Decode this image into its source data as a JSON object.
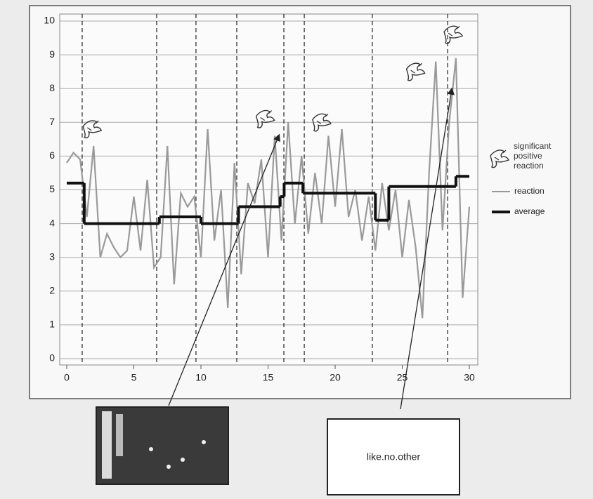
{
  "chart_data": {
    "type": "line",
    "x": [
      0,
      0.5,
      1,
      1.5,
      2,
      2.5,
      3,
      3.5,
      4,
      4.5,
      5,
      5.5,
      6,
      6.5,
      7,
      7.5,
      8,
      8.5,
      9,
      9.5,
      10,
      10.5,
      11,
      11.5,
      12,
      12.5,
      13,
      13.5,
      14,
      14.5,
      15,
      15.5,
      16,
      16.5,
      17,
      17.5,
      18,
      18.5,
      19,
      19.5,
      20,
      20.5,
      21,
      21.5,
      22,
      22.5,
      23,
      23.5,
      24,
      24.5,
      25,
      25.5,
      26,
      26.5,
      27,
      27.5,
      28,
      28.5,
      29,
      29.5,
      30
    ],
    "series": [
      {
        "name": "reaction",
        "color": "#9a9a9a",
        "values": [
          5.8,
          6.1,
          5.9,
          4.2,
          6.3,
          3.0,
          3.7,
          3.3,
          3.0,
          3.2,
          4.8,
          3.2,
          5.3,
          2.7,
          3.0,
          6.3,
          2.2,
          4.9,
          4.5,
          4.8,
          3.0,
          6.8,
          3.5,
          5.0,
          1.5,
          5.8,
          2.5,
          5.2,
          4.6,
          5.9,
          3.0,
          6.6,
          3.5,
          7.0,
          4.0,
          6.0,
          3.7,
          5.5,
          4.0,
          6.6,
          4.5,
          6.8,
          4.2,
          5.0,
          3.5,
          4.8,
          3.2,
          5.2,
          3.8,
          5.0,
          3.0,
          4.7,
          3.3,
          1.2,
          5.5,
          8.8,
          3.8,
          7.0,
          8.9,
          1.8,
          4.5
        ]
      },
      {
        "name": "average",
        "color": "#111111",
        "step": true,
        "x": [
          0,
          1.3,
          6.9,
          10,
          12.8,
          15.9,
          16.2,
          17.6,
          23,
          24,
          29,
          30
        ],
        "values": [
          5.2,
          4.0,
          4.2,
          4.0,
          4.5,
          4.8,
          5.2,
          4.9,
          4.1,
          5.1,
          5.4,
          5.4
        ]
      }
    ],
    "significant_reactions": {
      "name": "significant positive reaction",
      "x": [
        1.9,
        14.8,
        19,
        26,
        28.8
      ],
      "y": [
        6.8,
        7.1,
        7.0,
        8.5,
        9.6
      ]
    },
    "markers_x": [
      1.15,
      6.7,
      9.63,
      12.67,
      16.18,
      17.7,
      22.77,
      28.38
    ],
    "xlim": [
      0,
      30
    ],
    "xticks": [
      0,
      5,
      10,
      15,
      20,
      25,
      30
    ],
    "ylim": [
      0,
      10
    ],
    "yticks": [
      0,
      1,
      2,
      3,
      4,
      5,
      6,
      7,
      8,
      9,
      10
    ],
    "grid": true,
    "annotation": "like.no.other"
  }
}
